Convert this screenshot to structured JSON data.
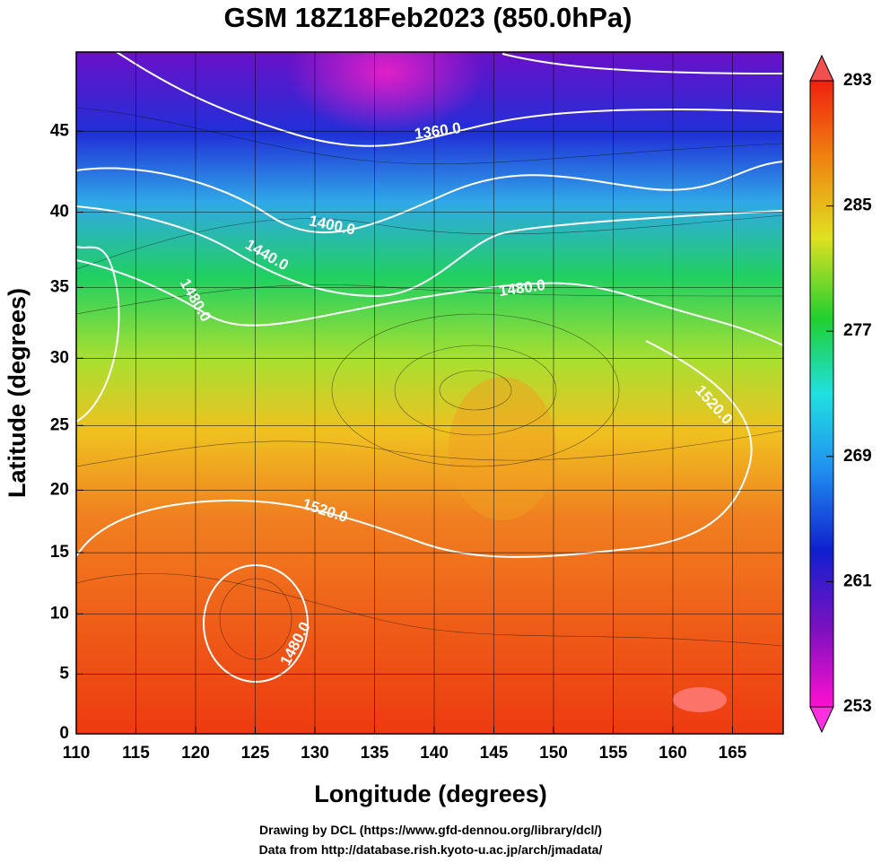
{
  "title": "GSM 18Z18Feb2023 (850.0hPa)",
  "chart_data": {
    "type": "map",
    "projection": "mercator",
    "x_label": "Longitude (degrees)",
    "y_label": "Latitude  (degrees)",
    "xlim": [
      110,
      169.25
    ],
    "ylim": [
      0,
      49.5
    ],
    "xticks": [
      110,
      115,
      120,
      125,
      130,
      135,
      140,
      145,
      150,
      155,
      160,
      165
    ],
    "yticks": [
      0,
      5,
      10,
      15,
      20,
      25,
      30,
      35,
      40,
      45
    ],
    "grid": true,
    "colorbar": {
      "lim": [
        253,
        293
      ],
      "ticks": [
        253,
        261,
        269,
        277,
        285,
        293
      ]
    },
    "contour_labels": [
      "1360.0",
      "1400.0",
      "1440.0",
      "1480.0",
      "1520.0",
      "1520.0",
      "1480.0",
      "1480.0"
    ]
  },
  "footer": [
    "Drawing by DCL (https://www.gfd-dennou.org/library/dcl/)",
    "Data from http://database.rish.kyoto-u.ac.jp/arch/jmadata/"
  ]
}
